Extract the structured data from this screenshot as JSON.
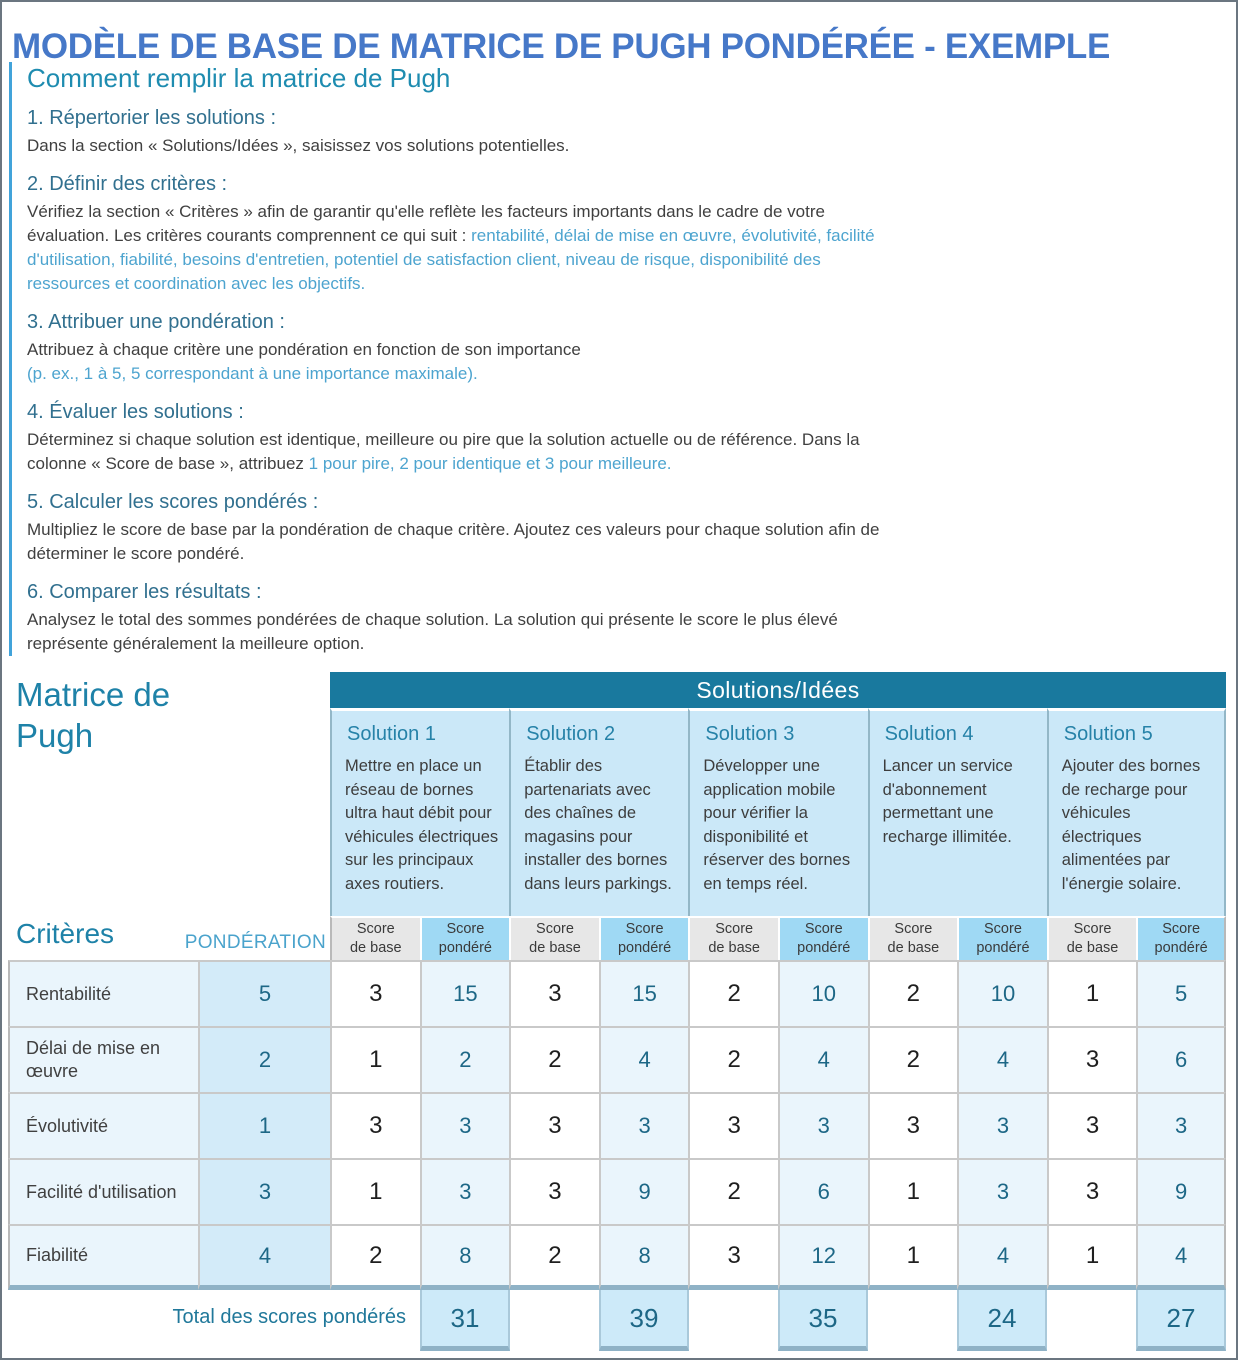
{
  "page": {
    "title": "MODÈLE DE BASE DE MATRICE DE PUGH PONDÉRÉE - EXEMPLE"
  },
  "colors": {
    "title_blue": "#4678c8",
    "heading_teal": "#1e82a8",
    "accent_text_blue": "#4da4cf",
    "band_teal": "#19799e",
    "solution_bg": "#cbe8f8",
    "base_header_bg": "#e7e7e7",
    "weighted_header_bg": "#9fd9f4",
    "row_bg": "#eaf5fc",
    "weight_col_bg": "#d3ebf9",
    "number_teal": "#1d6786",
    "total_box_bg": "#cdeaf9"
  },
  "instructions": {
    "heading": "Comment remplir la matrice de Pugh",
    "items": [
      {
        "title": "1. Répertorier les solutions :",
        "body": "Dans la section « Solutions/Idées », saisissez vos solutions potentielles.",
        "accent": ""
      },
      {
        "title": "2. Définir des critères :",
        "body": "Vérifiez la section « Critères » afin de garantir qu'elle reflète les facteurs importants dans le cadre de votre évaluation. Les critères courants comprennent ce qui suit : ",
        "accent": "rentabilité, délai de mise en œuvre, évolutivité, facilité d'utilisation, fiabilité, besoins d'entretien, potentiel de satisfaction client, niveau de risque, disponibilité des ressources et coordination avec les objectifs."
      },
      {
        "title": "3. Attribuer une pondération :",
        "body": "Attribuez à chaque critère une pondération en fonction de son importance",
        "accent": "(p. ex., 1 à 5, 5 correspondant à une importance maximale)."
      },
      {
        "title": "4. Évaluer les solutions :",
        "body": "Déterminez si chaque solution est identique, meilleure ou pire que la solution actuelle ou de référence. Dans la colonne « Score de base », attribuez ",
        "accent": "1 pour pire, 2 pour identique et 3 pour meilleure."
      },
      {
        "title": "5. Calculer les scores pondérés :",
        "body": "Multipliez le score de base par la pondération de chaque critère. Ajoutez ces valeurs pour chaque solution afin de déterminer le score pondéré.",
        "accent": ""
      },
      {
        "title": "6. Comparer les résultats :",
        "body": "Analysez le total des sommes pondérées de chaque solution. La solution qui présente le score le plus élevé représente généralement la meilleure option.",
        "accent": ""
      }
    ]
  },
  "matrix": {
    "title": "Matrice de Pugh",
    "band_label": "Solutions/Idées",
    "criteria_label": "Critères",
    "weight_label": "PONDÉRATION",
    "score_base_header": [
      "Score",
      "de base"
    ],
    "score_weighted_header": [
      "Score",
      "pondéré"
    ],
    "solutions": [
      {
        "name": "Solution 1",
        "desc": "Mettre en place un réseau de bornes ultra haut débit pour véhicules électriques sur les principaux axes routiers."
      },
      {
        "name": "Solution 2",
        "desc": "Établir des partenariats avec des chaînes de magasins pour installer des bornes dans leurs parkings."
      },
      {
        "name": "Solution 3",
        "desc": "Développer une application mobile pour vérifier la disponibilité et réserver des bornes en temps réel."
      },
      {
        "name": "Solution 4",
        "desc": "Lancer un service d'abonnement permettant une recharge illimitée."
      },
      {
        "name": "Solution 5",
        "desc": "Ajouter des bornes de recharge pour véhicules électriques alimentées par l'énergie solaire."
      }
    ],
    "rows": [
      {
        "criterion": "Rentabilité",
        "weight": "5",
        "scores": [
          {
            "base": "3",
            "weighted": "15"
          },
          {
            "base": "3",
            "weighted": "15"
          },
          {
            "base": "2",
            "weighted": "10"
          },
          {
            "base": "2",
            "weighted": "10"
          },
          {
            "base": "1",
            "weighted": "5"
          }
        ]
      },
      {
        "criterion": "Délai de mise en œuvre",
        "weight": "2",
        "scores": [
          {
            "base": "1",
            "weighted": "2"
          },
          {
            "base": "2",
            "weighted": "4"
          },
          {
            "base": "2",
            "weighted": "4"
          },
          {
            "base": "2",
            "weighted": "4"
          },
          {
            "base": "3",
            "weighted": "6"
          }
        ]
      },
      {
        "criterion": "Évolutivité",
        "weight": "1",
        "scores": [
          {
            "base": "3",
            "weighted": "3"
          },
          {
            "base": "3",
            "weighted": "3"
          },
          {
            "base": "3",
            "weighted": "3"
          },
          {
            "base": "3",
            "weighted": "3"
          },
          {
            "base": "3",
            "weighted": "3"
          }
        ]
      },
      {
        "criterion": "Facilité d'utilisation",
        "weight": "3",
        "scores": [
          {
            "base": "1",
            "weighted": "3"
          },
          {
            "base": "3",
            "weighted": "9"
          },
          {
            "base": "2",
            "weighted": "6"
          },
          {
            "base": "1",
            "weighted": "3"
          },
          {
            "base": "3",
            "weighted": "9"
          }
        ]
      },
      {
        "criterion": "Fiabilité",
        "weight": "4",
        "scores": [
          {
            "base": "2",
            "weighted": "8"
          },
          {
            "base": "2",
            "weighted": "8"
          },
          {
            "base": "3",
            "weighted": "12"
          },
          {
            "base": "1",
            "weighted": "4"
          },
          {
            "base": "1",
            "weighted": "4"
          }
        ]
      }
    ],
    "total": {
      "label": "Total des scores pondérés",
      "values": [
        "31",
        "39",
        "35",
        "24",
        "27"
      ]
    }
  }
}
